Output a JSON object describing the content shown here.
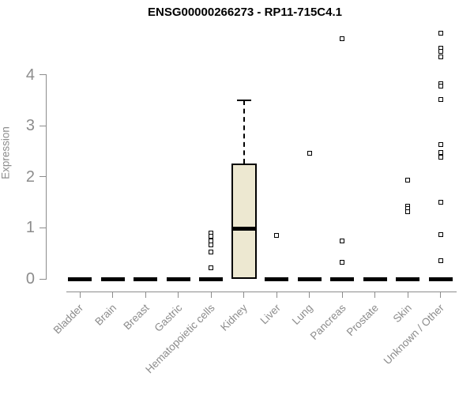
{
  "chart_data": {
    "type": "boxplot",
    "title": "ENSG00000266273 - RP11-715C4.1",
    "ylabel": "Expression",
    "xlabel": "",
    "ylim": [
      0,
      4.9
    ],
    "yticks": [
      0,
      1,
      2,
      3,
      4
    ],
    "grid": false,
    "legend": "none",
    "categories": [
      "Bladder",
      "Brain",
      "Breast",
      "Gastric",
      "Hematopoietic cells",
      "Kidney",
      "Liver",
      "Lung",
      "Pancreas",
      "Prostate",
      "Skin",
      "Unknown / Other"
    ],
    "boxes": [
      {
        "category": "Bladder",
        "q1": 0,
        "median": 0,
        "q3": 0,
        "whisker_low": 0,
        "whisker_high": 0,
        "outliers": []
      },
      {
        "category": "Brain",
        "q1": 0,
        "median": 0,
        "q3": 0,
        "whisker_low": 0,
        "whisker_high": 0,
        "outliers": []
      },
      {
        "category": "Breast",
        "q1": 0,
        "median": 0,
        "q3": 0,
        "whisker_low": 0,
        "whisker_high": 0,
        "outliers": []
      },
      {
        "category": "Gastric",
        "q1": 0,
        "median": 0,
        "q3": 0,
        "whisker_low": 0,
        "whisker_high": 0,
        "outliers": []
      },
      {
        "category": "Hematopoietic cells",
        "q1": 0,
        "median": 0,
        "q3": 0,
        "whisker_low": 0,
        "whisker_high": 0,
        "outliers": [
          0.9,
          0.84,
          0.74,
          0.66,
          0.53,
          0.22
        ]
      },
      {
        "category": "Kidney",
        "q1": 0,
        "median": 0.98,
        "q3": 2.26,
        "whisker_low": 0,
        "whisker_high": 3.5,
        "outliers": []
      },
      {
        "category": "Liver",
        "q1": 0,
        "median": 0,
        "q3": 0,
        "whisker_low": 0,
        "whisker_high": 0,
        "outliers": [
          0.85
        ]
      },
      {
        "category": "Lung",
        "q1": 0,
        "median": 0,
        "q3": 0,
        "whisker_low": 0,
        "whisker_high": 0,
        "outliers": [
          2.46
        ]
      },
      {
        "category": "Pancreas",
        "q1": 0,
        "median": 0,
        "q3": 0,
        "whisker_low": 0,
        "whisker_high": 0,
        "outliers": [
          4.71,
          0.74,
          0.32
        ]
      },
      {
        "category": "Prostate",
        "q1": 0,
        "median": 0,
        "q3": 0,
        "whisker_low": 0,
        "whisker_high": 0,
        "outliers": []
      },
      {
        "category": "Skin",
        "q1": 0,
        "median": 0,
        "q3": 0,
        "whisker_low": 0,
        "whisker_high": 0,
        "outliers": [
          1.94,
          1.43,
          1.38,
          1.32
        ]
      },
      {
        "category": "Unknown / Other",
        "q1": 0,
        "median": 0,
        "q3": 0,
        "whisker_low": 0,
        "whisker_high": 0,
        "outliers": [
          4.81,
          4.52,
          4.46,
          4.35,
          3.83,
          3.77,
          3.52,
          2.63,
          2.47,
          2.38,
          1.5,
          0.86,
          0.35
        ]
      }
    ],
    "colors": {
      "box_fill": "#EDE8D1",
      "box_border": "#000000",
      "median": "#000000",
      "axis": "#8C8C8C",
      "tick_label": "#8C8C8C",
      "title": "#000000",
      "outlier": "#000000",
      "background": "#FFFFFF"
    }
  }
}
